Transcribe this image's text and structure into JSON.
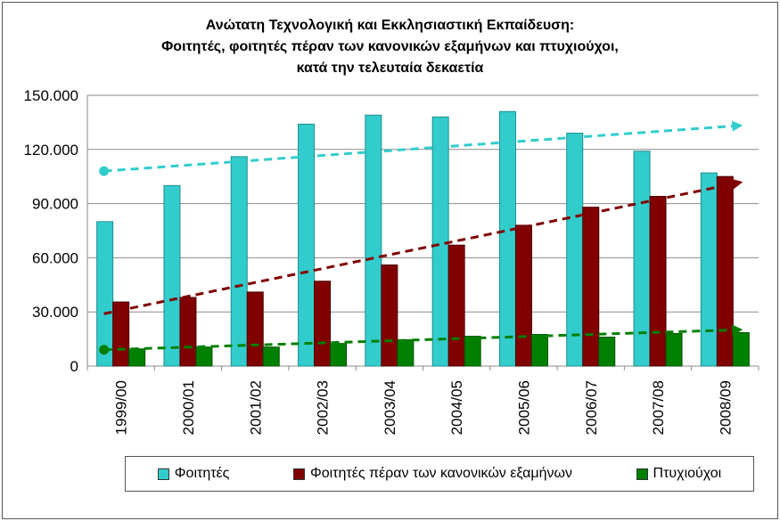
{
  "chart_data": {
    "type": "bar",
    "title_lines": [
      "Ανώτατη Τεχνολογική και Εκκλησιαστική  Εκπαίδευση:",
      "Φοιτητές, φοιτητές πέραν των κανονικών εξαμήνων και πτυχιούχοι,",
      "κατά την τελευταία δεκαετία"
    ],
    "categories": [
      "1999/00",
      "2000/01",
      "2001/02",
      "2002/03",
      "2003/04",
      "2004/05",
      "2005/06",
      "2006/07",
      "2007/08",
      "2008/09"
    ],
    "series": [
      {
        "name": "Φοιτητές",
        "color": "#33CCCC",
        "values": [
          80000,
          100000,
          116000,
          134000,
          139000,
          138000,
          141000,
          129000,
          119000,
          107000
        ]
      },
      {
        "name": "Φοιτητές πέραν των κανονικών εξαμήνων",
        "color": "#800000",
        "values": [
          35500,
          38000,
          41000,
          47000,
          56000,
          67000,
          78000,
          88000,
          94000,
          105000
        ]
      },
      {
        "name": "Πτυχιούχοι",
        "color": "#008000",
        "values": [
          9500,
          10500,
          10500,
          12500,
          14500,
          16500,
          17500,
          16000,
          18000,
          18500
        ]
      }
    ],
    "trendlines": [
      {
        "series": "Φοιτητές",
        "color": "#33CCCC",
        "from": 108000,
        "to": 133000,
        "start_marker": "circle",
        "end_marker": "arrow"
      },
      {
        "series": "Φοιτητές πέραν των κανονικών εξαμήνων",
        "color": "#800000",
        "from": 29000,
        "to": 101000,
        "start_marker": "none",
        "end_marker": "arrow"
      },
      {
        "series": "Πτυχιούχοι",
        "color": "#008000",
        "from": 9000,
        "to": 20000,
        "start_marker": "circle",
        "end_marker": "arrow"
      }
    ],
    "ylim": [
      0,
      150000
    ],
    "y_ticks": [
      0,
      30000,
      60000,
      90000,
      120000,
      150000
    ],
    "y_tick_labels": [
      "0",
      "30.000",
      "60.000",
      "90.000",
      "120.000",
      "150.000"
    ],
    "xlabel": "",
    "ylabel": "",
    "grid": true,
    "legend_position": "bottom"
  }
}
